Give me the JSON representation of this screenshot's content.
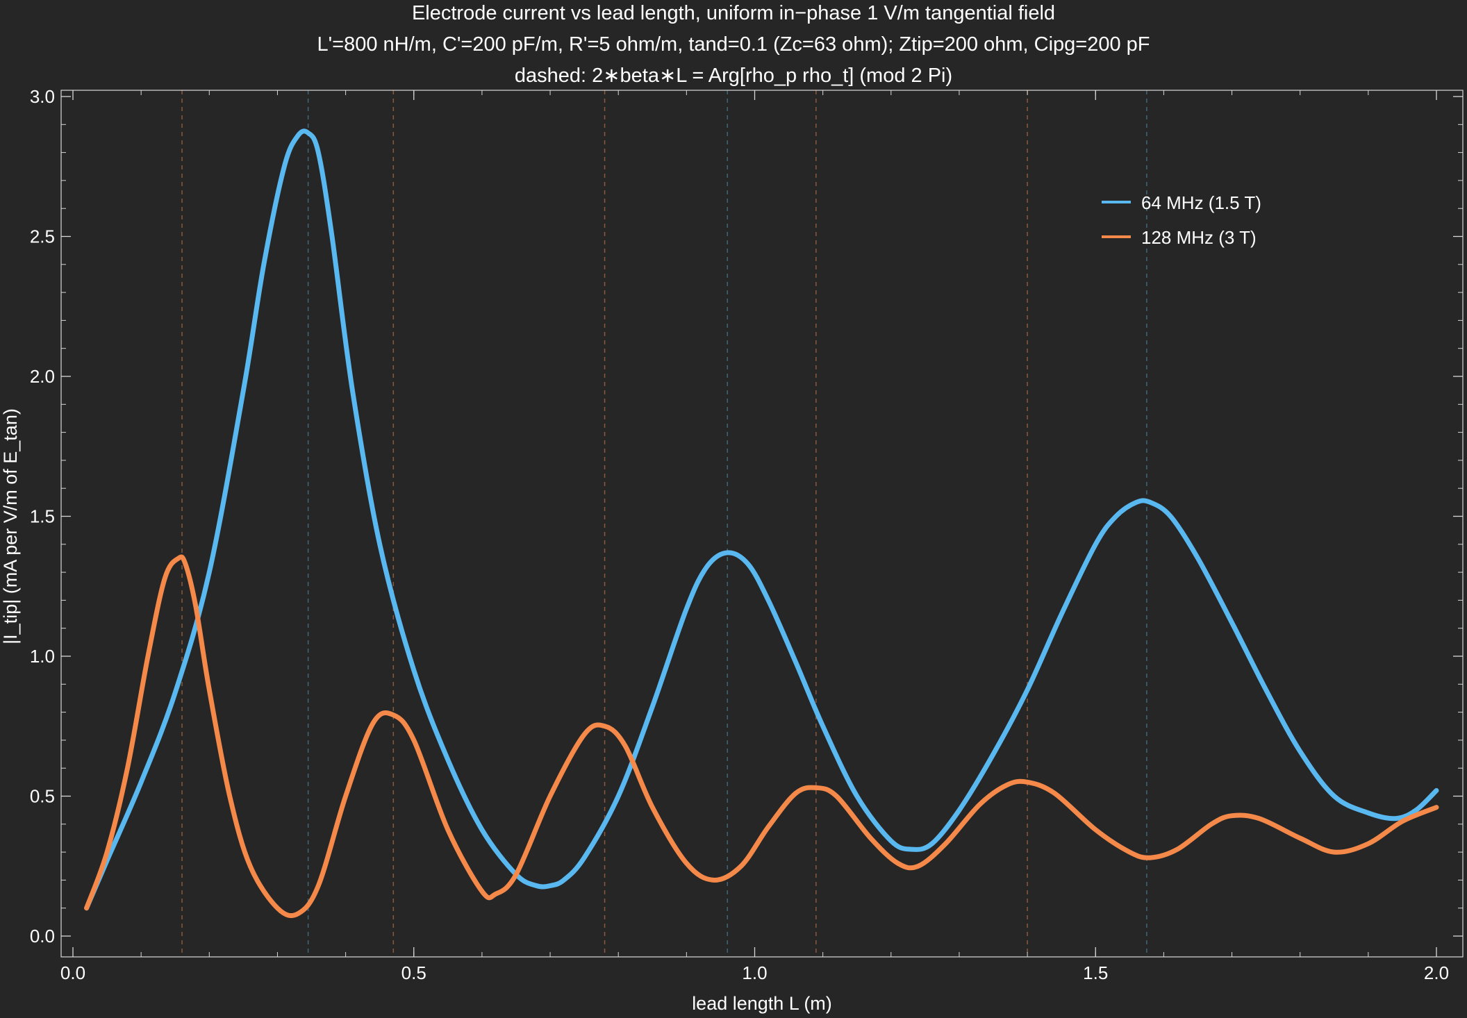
{
  "chart_data": {
    "type": "line",
    "title_lines": [
      "Electrode current vs lead length, uniform in−phase 1 V/m tangential field",
      "L'=800 nH/m, C'=200 pF/m, R'=5 ohm/m, tand=0.1 (Zc=63 ohm); Ztip=200 ohm, Cipg=200 pF",
      "dashed: 2∗beta∗L = Arg[rho_p rho_t] (mod 2 Pi)"
    ],
    "xlabel": "lead length L (m)",
    "ylabel": "|I_tip| (mA per V/m of E_tan)",
    "xlim": [
      0.0,
      2.0
    ],
    "ylim": [
      0.0,
      3.0
    ],
    "xticks": [
      0.0,
      0.5,
      1.0,
      1.5,
      2.0
    ],
    "xtick_labels": [
      "0.0",
      "0.5",
      "1.0",
      "1.5",
      "2.0"
    ],
    "yticks": [
      0.0,
      0.5,
      1.0,
      1.5,
      2.0,
      2.5,
      3.0
    ],
    "ytick_labels": [
      "0.0",
      "0.5",
      "1.0",
      "1.5",
      "2.0",
      "2.5",
      "3.0"
    ],
    "grid": false,
    "legend_placement": "top-right",
    "series": [
      {
        "name": "64 MHz (1.5 T)",
        "color": "#5ab8f0",
        "x": [
          0.02,
          0.05,
          0.1,
          0.15,
          0.2,
          0.25,
          0.28,
          0.31,
          0.33,
          0.345,
          0.36,
          0.38,
          0.41,
          0.45,
          0.5,
          0.55,
          0.6,
          0.65,
          0.68,
          0.7,
          0.72,
          0.75,
          0.8,
          0.85,
          0.9,
          0.93,
          0.96,
          0.99,
          1.02,
          1.06,
          1.1,
          1.15,
          1.2,
          1.23,
          1.26,
          1.3,
          1.35,
          1.4,
          1.45,
          1.5,
          1.53,
          1.56,
          1.58,
          1.61,
          1.65,
          1.7,
          1.75,
          1.8,
          1.85,
          1.9,
          1.94,
          1.97,
          2.0
        ],
        "y": [
          0.1,
          0.27,
          0.55,
          0.87,
          1.3,
          1.95,
          2.4,
          2.75,
          2.86,
          2.87,
          2.8,
          2.5,
          1.95,
          1.4,
          0.95,
          0.63,
          0.38,
          0.22,
          0.18,
          0.18,
          0.2,
          0.28,
          0.5,
          0.82,
          1.17,
          1.32,
          1.37,
          1.33,
          1.2,
          0.98,
          0.75,
          0.5,
          0.34,
          0.31,
          0.33,
          0.45,
          0.65,
          0.88,
          1.15,
          1.4,
          1.5,
          1.55,
          1.55,
          1.5,
          1.35,
          1.12,
          0.88,
          0.66,
          0.5,
          0.44,
          0.42,
          0.45,
          0.52
        ]
      },
      {
        "name": "128 MHz (3 T)",
        "color": "#f5894a",
        "x": [
          0.02,
          0.05,
          0.08,
          0.11,
          0.135,
          0.155,
          0.165,
          0.18,
          0.2,
          0.23,
          0.26,
          0.3,
          0.33,
          0.36,
          0.4,
          0.44,
          0.47,
          0.5,
          0.55,
          0.6,
          0.62,
          0.65,
          0.7,
          0.75,
          0.78,
          0.81,
          0.85,
          0.9,
          0.94,
          0.98,
          1.02,
          1.06,
          1.09,
          1.12,
          1.17,
          1.21,
          1.24,
          1.28,
          1.33,
          1.37,
          1.4,
          1.44,
          1.5,
          1.55,
          1.58,
          1.62,
          1.67,
          1.7,
          1.74,
          1.8,
          1.85,
          1.9,
          1.95,
          2.0
        ],
        "y": [
          0.1,
          0.3,
          0.6,
          1.0,
          1.28,
          1.35,
          1.33,
          1.18,
          0.88,
          0.5,
          0.25,
          0.1,
          0.08,
          0.18,
          0.5,
          0.76,
          0.79,
          0.7,
          0.38,
          0.16,
          0.15,
          0.22,
          0.5,
          0.72,
          0.75,
          0.68,
          0.46,
          0.26,
          0.2,
          0.25,
          0.39,
          0.51,
          0.53,
          0.5,
          0.35,
          0.26,
          0.25,
          0.33,
          0.47,
          0.54,
          0.55,
          0.51,
          0.38,
          0.3,
          0.28,
          0.31,
          0.4,
          0.43,
          0.42,
          0.35,
          0.3,
          0.33,
          0.41,
          0.46
        ]
      }
    ],
    "dashed_lines": [
      {
        "series": "128 MHz (3 T)",
        "x": 0.16,
        "color": "#8a5a3c"
      },
      {
        "series": "64 MHz (1.5 T)",
        "x": 0.345,
        "color": "#3f6878"
      },
      {
        "series": "128 MHz (3 T)",
        "x": 0.47,
        "color": "#8a5a3c"
      },
      {
        "series": "128 MHz (3 T)",
        "x": 0.78,
        "color": "#8a5a3c"
      },
      {
        "series": "64 MHz (1.5 T)",
        "x": 0.96,
        "color": "#3f6878"
      },
      {
        "series": "128 MHz (3 T)",
        "x": 1.09,
        "color": "#8a5a3c"
      },
      {
        "series": "128 MHz (3 T)",
        "x": 1.4,
        "color": "#8a5a3c"
      },
      {
        "series": "64 MHz (1.5 T)",
        "x": 1.575,
        "color": "#3f6878"
      }
    ],
    "background_color": "#262626",
    "axis_color": "#d9d9d9"
  }
}
